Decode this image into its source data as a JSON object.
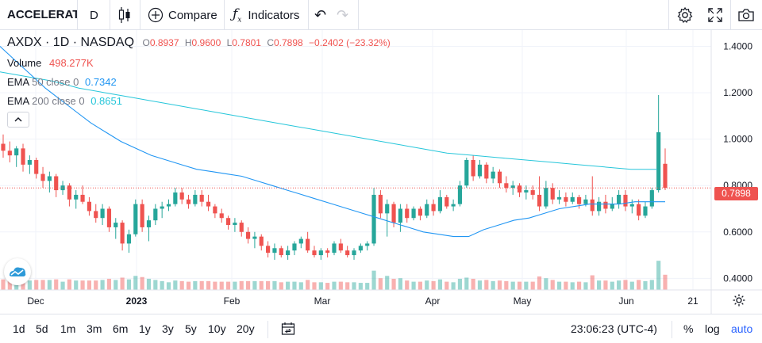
{
  "toolbar": {
    "symbol": "ACCELERATE",
    "interval": "D",
    "compare_label": "Compare",
    "indicators_label": "Indicators",
    "icons": [
      "candles-icon",
      "compare-plus-icon",
      "indicators-fx-icon",
      "undo-icon",
      "redo-icon",
      "settings-gear-icon",
      "fullscreen-icon",
      "camera-icon"
    ]
  },
  "legend": {
    "title": "AXDX · 1D · NASDAQ",
    "o_label": "O",
    "o": "0.8937",
    "h_label": "H",
    "h": "0.9600",
    "l_label": "L",
    "l": "0.7801",
    "c_label": "C",
    "c": "0.7898",
    "change": "−0.2402 (−23.32%)",
    "volume_label": "Volume",
    "volume": "498.277K",
    "ema50_label": "EMA",
    "ema50_params": "50 close 0",
    "ema50_value": "0.7342",
    "ema200_label": "EMA",
    "ema200_params": "200 close 0",
    "ema200_value": "0.8651"
  },
  "price_axis": {
    "ticks": [
      "1.4000",
      "1.2000",
      "1.0000",
      "0.8000",
      "0.6000",
      "0.4000"
    ],
    "last_price": "0.7898"
  },
  "time_axis": {
    "ticks": [
      "Dec",
      "2023",
      "Feb",
      "Mar",
      "Apr",
      "May",
      "Jun",
      "21"
    ]
  },
  "bottom": {
    "ranges": [
      "1d",
      "5d",
      "1m",
      "3m",
      "6m",
      "1y",
      "3y",
      "5y",
      "10y",
      "20y"
    ],
    "clock": "23:06:23 (UTC-4)",
    "percent_label": "%",
    "log_label": "log",
    "auto_label": "auto"
  },
  "colors": {
    "up": "#26a69a",
    "down": "#ef5350",
    "ema50": "#2196f3",
    "ema200": "#26c6da",
    "auto_active": "#2962ff"
  },
  "chart_data": {
    "type": "candlestick",
    "ylim": [
      0.35,
      1.47
    ],
    "series": [
      {
        "name": "EMA 50 close 0",
        "values": [
          1.4,
          1.34,
          1.28,
          1.22,
          1.17,
          1.12,
          1.07,
          1.03,
          0.99,
          0.96,
          0.93,
          0.91,
          0.89,
          0.87,
          0.86,
          0.85,
          0.84,
          0.82,
          0.8,
          0.78,
          0.76,
          0.74,
          0.72,
          0.7,
          0.68,
          0.66,
          0.64,
          0.62,
          0.6,
          0.59,
          0.58,
          0.58,
          0.61,
          0.63,
          0.65,
          0.66,
          0.68,
          0.7,
          0.71,
          0.72,
          0.72,
          0.72,
          0.73,
          0.73,
          0.73
        ]
      },
      {
        "name": "EMA 200 close 0",
        "values": [
          1.29,
          1.27,
          1.25,
          1.22,
          1.2,
          1.18,
          1.16,
          1.14,
          1.12,
          1.1,
          1.08,
          1.06,
          1.04,
          1.02,
          1.0,
          0.98,
          0.96,
          0.94,
          0.93,
          0.92,
          0.91,
          0.9,
          0.89,
          0.88,
          0.87,
          0.87
        ]
      }
    ],
    "candles": [
      {
        "o": 0.98,
        "h": 1.02,
        "l": 0.92,
        "c": 0.95
      },
      {
        "o": 0.95,
        "h": 0.99,
        "l": 0.9,
        "c": 0.93
      },
      {
        "o": 0.93,
        "h": 0.97,
        "l": 0.88,
        "c": 0.96
      },
      {
        "o": 0.96,
        "h": 0.98,
        "l": 0.86,
        "c": 0.89
      },
      {
        "o": 0.89,
        "h": 0.93,
        "l": 0.85,
        "c": 0.91
      },
      {
        "o": 0.91,
        "h": 0.92,
        "l": 0.83,
        "c": 0.85
      },
      {
        "o": 0.85,
        "h": 0.88,
        "l": 0.79,
        "c": 0.82
      },
      {
        "o": 0.82,
        "h": 0.86,
        "l": 0.77,
        "c": 0.84
      },
      {
        "o": 0.84,
        "h": 0.85,
        "l": 0.75,
        "c": 0.78
      },
      {
        "o": 0.78,
        "h": 0.82,
        "l": 0.76,
        "c": 0.8
      },
      {
        "o": 0.8,
        "h": 0.81,
        "l": 0.71,
        "c": 0.74
      },
      {
        "o": 0.74,
        "h": 0.78,
        "l": 0.7,
        "c": 0.76
      },
      {
        "o": 0.76,
        "h": 0.8,
        "l": 0.72,
        "c": 0.73
      },
      {
        "o": 0.73,
        "h": 0.75,
        "l": 0.67,
        "c": 0.69
      },
      {
        "o": 0.69,
        "h": 0.72,
        "l": 0.64,
        "c": 0.66
      },
      {
        "o": 0.66,
        "h": 0.72,
        "l": 0.63,
        "c": 0.7
      },
      {
        "o": 0.7,
        "h": 0.71,
        "l": 0.6,
        "c": 0.62
      },
      {
        "o": 0.62,
        "h": 0.66,
        "l": 0.57,
        "c": 0.64
      },
      {
        "o": 0.64,
        "h": 0.65,
        "l": 0.52,
        "c": 0.55
      },
      {
        "o": 0.55,
        "h": 0.61,
        "l": 0.51,
        "c": 0.59
      },
      {
        "o": 0.59,
        "h": 0.74,
        "l": 0.58,
        "c": 0.72
      },
      {
        "o": 0.72,
        "h": 0.74,
        "l": 0.6,
        "c": 0.62
      },
      {
        "o": 0.62,
        "h": 0.67,
        "l": 0.56,
        "c": 0.65
      },
      {
        "o": 0.65,
        "h": 0.72,
        "l": 0.63,
        "c": 0.7
      },
      {
        "o": 0.7,
        "h": 0.73,
        "l": 0.66,
        "c": 0.71
      },
      {
        "o": 0.71,
        "h": 0.74,
        "l": 0.69,
        "c": 0.72
      },
      {
        "o": 0.72,
        "h": 0.79,
        "l": 0.71,
        "c": 0.77
      },
      {
        "o": 0.77,
        "h": 0.79,
        "l": 0.72,
        "c": 0.74
      },
      {
        "o": 0.74,
        "h": 0.76,
        "l": 0.7,
        "c": 0.72
      },
      {
        "o": 0.72,
        "h": 0.78,
        "l": 0.71,
        "c": 0.76
      },
      {
        "o": 0.76,
        "h": 0.78,
        "l": 0.71,
        "c": 0.73
      },
      {
        "o": 0.73,
        "h": 0.76,
        "l": 0.69,
        "c": 0.71
      },
      {
        "o": 0.71,
        "h": 0.72,
        "l": 0.66,
        "c": 0.68
      },
      {
        "o": 0.68,
        "h": 0.7,
        "l": 0.64,
        "c": 0.66
      },
      {
        "o": 0.66,
        "h": 0.67,
        "l": 0.61,
        "c": 0.63
      },
      {
        "o": 0.63,
        "h": 0.66,
        "l": 0.6,
        "c": 0.64
      },
      {
        "o": 0.64,
        "h": 0.65,
        "l": 0.58,
        "c": 0.6
      },
      {
        "o": 0.6,
        "h": 0.62,
        "l": 0.55,
        "c": 0.57
      },
      {
        "o": 0.57,
        "h": 0.6,
        "l": 0.53,
        "c": 0.58
      },
      {
        "o": 0.58,
        "h": 0.59,
        "l": 0.52,
        "c": 0.54
      },
      {
        "o": 0.54,
        "h": 0.56,
        "l": 0.49,
        "c": 0.51
      },
      {
        "o": 0.51,
        "h": 0.55,
        "l": 0.48,
        "c": 0.53
      },
      {
        "o": 0.53,
        "h": 0.54,
        "l": 0.49,
        "c": 0.5
      },
      {
        "o": 0.5,
        "h": 0.54,
        "l": 0.48,
        "c": 0.52
      },
      {
        "o": 0.52,
        "h": 0.56,
        "l": 0.5,
        "c": 0.55
      },
      {
        "o": 0.55,
        "h": 0.58,
        "l": 0.53,
        "c": 0.57
      },
      {
        "o": 0.57,
        "h": 0.6,
        "l": 0.51,
        "c": 0.52
      },
      {
        "o": 0.52,
        "h": 0.54,
        "l": 0.49,
        "c": 0.5
      },
      {
        "o": 0.5,
        "h": 0.53,
        "l": 0.48,
        "c": 0.52
      },
      {
        "o": 0.52,
        "h": 0.53,
        "l": 0.49,
        "c": 0.51
      },
      {
        "o": 0.51,
        "h": 0.56,
        "l": 0.5,
        "c": 0.55
      },
      {
        "o": 0.55,
        "h": 0.57,
        "l": 0.51,
        "c": 0.52
      },
      {
        "o": 0.52,
        "h": 0.54,
        "l": 0.49,
        "c": 0.5
      },
      {
        "o": 0.5,
        "h": 0.53,
        "l": 0.48,
        "c": 0.52
      },
      {
        "o": 0.52,
        "h": 0.55,
        "l": 0.51,
        "c": 0.54
      },
      {
        "o": 0.54,
        "h": 0.56,
        "l": 0.52,
        "c": 0.55
      },
      {
        "o": 0.55,
        "h": 0.79,
        "l": 0.54,
        "c": 0.76
      },
      {
        "o": 0.76,
        "h": 0.78,
        "l": 0.66,
        "c": 0.68
      },
      {
        "o": 0.68,
        "h": 0.74,
        "l": 0.58,
        "c": 0.72
      },
      {
        "o": 0.72,
        "h": 0.73,
        "l": 0.62,
        "c": 0.64
      },
      {
        "o": 0.64,
        "h": 0.72,
        "l": 0.6,
        "c": 0.7
      },
      {
        "o": 0.7,
        "h": 0.72,
        "l": 0.64,
        "c": 0.66
      },
      {
        "o": 0.66,
        "h": 0.71,
        "l": 0.65,
        "c": 0.7
      },
      {
        "o": 0.7,
        "h": 0.71,
        "l": 0.65,
        "c": 0.67
      },
      {
        "o": 0.67,
        "h": 0.74,
        "l": 0.66,
        "c": 0.72
      },
      {
        "o": 0.72,
        "h": 0.74,
        "l": 0.67,
        "c": 0.69
      },
      {
        "o": 0.69,
        "h": 0.78,
        "l": 0.68,
        "c": 0.75
      },
      {
        "o": 0.75,
        "h": 0.76,
        "l": 0.7,
        "c": 0.71
      },
      {
        "o": 0.71,
        "h": 0.74,
        "l": 0.69,
        "c": 0.72
      },
      {
        "o": 0.72,
        "h": 0.82,
        "l": 0.71,
        "c": 0.8
      },
      {
        "o": 0.8,
        "h": 0.92,
        "l": 0.79,
        "c": 0.91
      },
      {
        "o": 0.91,
        "h": 0.93,
        "l": 0.82,
        "c": 0.84
      },
      {
        "o": 0.84,
        "h": 0.91,
        "l": 0.83,
        "c": 0.89
      },
      {
        "o": 0.89,
        "h": 0.9,
        "l": 0.81,
        "c": 0.83
      },
      {
        "o": 0.83,
        "h": 0.88,
        "l": 0.81,
        "c": 0.86
      },
      {
        "o": 0.86,
        "h": 0.87,
        "l": 0.79,
        "c": 0.81
      },
      {
        "o": 0.81,
        "h": 0.84,
        "l": 0.77,
        "c": 0.79
      },
      {
        "o": 0.79,
        "h": 0.82,
        "l": 0.76,
        "c": 0.8
      },
      {
        "o": 0.8,
        "h": 0.81,
        "l": 0.75,
        "c": 0.77
      },
      {
        "o": 0.77,
        "h": 0.8,
        "l": 0.74,
        "c": 0.78
      },
      {
        "o": 0.78,
        "h": 0.8,
        "l": 0.74,
        "c": 0.76
      },
      {
        "o": 0.76,
        "h": 0.84,
        "l": 0.69,
        "c": 0.71
      },
      {
        "o": 0.71,
        "h": 0.82,
        "l": 0.7,
        "c": 0.79
      },
      {
        "o": 0.79,
        "h": 0.81,
        "l": 0.72,
        "c": 0.74
      },
      {
        "o": 0.74,
        "h": 0.78,
        "l": 0.72,
        "c": 0.75
      },
      {
        "o": 0.75,
        "h": 0.77,
        "l": 0.71,
        "c": 0.73
      },
      {
        "o": 0.73,
        "h": 0.77,
        "l": 0.72,
        "c": 0.75
      },
      {
        "o": 0.75,
        "h": 0.76,
        "l": 0.7,
        "c": 0.72
      },
      {
        "o": 0.72,
        "h": 0.76,
        "l": 0.71,
        "c": 0.74
      },
      {
        "o": 0.74,
        "h": 0.84,
        "l": 0.67,
        "c": 0.69
      },
      {
        "o": 0.69,
        "h": 0.75,
        "l": 0.67,
        "c": 0.73
      },
      {
        "o": 0.73,
        "h": 0.76,
        "l": 0.68,
        "c": 0.7
      },
      {
        "o": 0.7,
        "h": 0.75,
        "l": 0.69,
        "c": 0.72
      },
      {
        "o": 0.72,
        "h": 0.78,
        "l": 0.7,
        "c": 0.76
      },
      {
        "o": 0.76,
        "h": 0.78,
        "l": 0.69,
        "c": 0.71
      },
      {
        "o": 0.71,
        "h": 0.74,
        "l": 0.68,
        "c": 0.72
      },
      {
        "o": 0.72,
        "h": 0.74,
        "l": 0.65,
        "c": 0.67
      },
      {
        "o": 0.67,
        "h": 0.73,
        "l": 0.66,
        "c": 0.71
      },
      {
        "o": 0.71,
        "h": 0.79,
        "l": 0.7,
        "c": 0.78
      },
      {
        "o": 0.78,
        "h": 1.19,
        "l": 0.77,
        "c": 1.03
      },
      {
        "o": 0.8937,
        "h": 0.96,
        "l": 0.7801,
        "c": 0.7898
      }
    ],
    "volume_note": "relative volume bars; final bar 498.277K"
  }
}
